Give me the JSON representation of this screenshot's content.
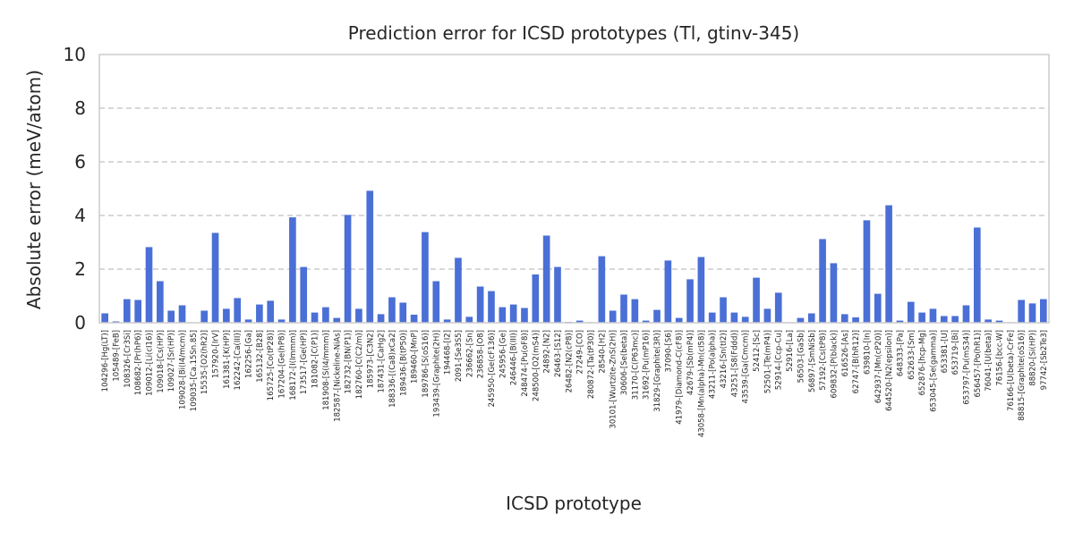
{
  "chart_data": {
    "type": "bar",
    "title": "Prediction error for ICSD prototypes (Tl, gtinv-345)",
    "xlabel": "ICSD prototype",
    "ylabel": "Absolute error (meV/atom)",
    "ylim": [
      0,
      10
    ],
    "yticks": [
      0,
      2,
      4,
      6,
      8,
      10
    ],
    "grid": "y-dashed",
    "colors": {
      "bar": "#4a6fd6",
      "grid": "#cccccc",
      "frame": "#cccccc"
    },
    "categories": [
      "104296-[Hg(LT)]",
      "105489-[FeB]",
      "108326-[Cr3Si]",
      "108682-[Pr(hP6)]",
      "109012-[Li(cI16)]",
      "109018-[Cs(HP)]",
      "109027-[Sr(HP)]",
      "109028-[Bi(I4/mcm)]",
      "109035-[Ca.15Sn.85]",
      "15535-[O2(hR2)]",
      "157920-[IrV]",
      "161381-[K(HP)]",
      "162242-[Ca(III)]",
      "162256-[Ga]",
      "165132-[B28]",
      "165725-[Co(tP28)]",
      "167204-[Ge(hP8)]",
      "168172-[I(Immm)]",
      "173517-[Ge(HP)]",
      "181082-[C(P1)]",
      "181908-[S(I4/mmm)]",
      "182587-[Nickeline-NiAs]",
      "182732-[BN(P1)]",
      "182760-[C(C2/m)]",
      "185973-[C3N2]",
      "187431-[CaHg2]",
      "188336-[(Ca8)xCa2]",
      "189436-[B(tP50)]",
      "189460-[MnP]",
      "189786-[S(oS16)]",
      "193439-[Graphite(2H)]",
      "194468-[I2]",
      "2091-[Se3S5]",
      "236662-[Sn]",
      "236858-[O8]",
      "245950-[Ge(cF136)]",
      "245956-[Ge]",
      "246446-[B(III)]",
      "248474-[Pu(oF8)]",
      "248500-[O2(mS4)]",
      "24892-[N2]",
      "26463-[S12]",
      "26482-[N2(cP8)]",
      "27249-[CO]",
      "280872-[Ta(tP30)]",
      "28540-[H2]",
      "30101-[Wurtzite-ZnS(2H)]",
      "30606-[Se(beta)]",
      "31170-[C(P63mc)]",
      "31692-[Pu(mP16)]",
      "31829-[Graphite(3R)]",
      "37090-[S6]",
      "41979-[Diamond-C(cF8)]",
      "42679-[Sb(mP4)]",
      "43058-[Mn(alpha)-Mn(cI58)]",
      "43211-[Po(alpha)]",
      "43216-[Sn(tI2)]",
      "43251-[S8(Fddd)]",
      "43539-[Ga(Cmcm)]",
      "52412-[Sc]",
      "52501-[Te(mP4)]",
      "52914-[Ccp-Cu]",
      "52916-[La]",
      "56503-[GaSb]",
      "56897-[SmNiSb]",
      "57192-[Cs(tP8)]",
      "609832-[P(black)]",
      "616526-[As]",
      "62747-[B(hR12)]",
      "639810-[In]",
      "642937-[Mn(cP20)]",
      "644520-[N2(epsilon)]",
      "648333-[Pa]",
      "652633-[Sm]",
      "652876-[hcp-Mg]",
      "653045-[Se(gamma)]",
      "653381-[U]",
      "653719-[Bi]",
      "653797-[Pu(mS34)]",
      "656457-[Po(hR1)]",
      "76041-[U(beta)]",
      "76156-[bcc-W]",
      "76166-[U(beta)-CrFe]",
      "88815-[Graphite(oS16)]",
      "88820-[Si(HP)]",
      "97742-[Sb2Te3]"
    ],
    "values": [
      0.35,
      0.05,
      0.88,
      0.85,
      2.82,
      1.55,
      0.45,
      0.65,
      0.0,
      0.45,
      3.35,
      0.52,
      0.92,
      0.12,
      0.68,
      0.82,
      0.12,
      3.93,
      2.08,
      0.38,
      0.58,
      0.18,
      4.02,
      0.52,
      4.92,
      0.32,
      0.95,
      0.75,
      0.3,
      3.38,
      1.55,
      0.12,
      2.42,
      0.22,
      1.35,
      1.18,
      0.58,
      0.68,
      0.55,
      1.8,
      3.25,
      2.08,
      0.03,
      0.08,
      0.02,
      2.48,
      0.45,
      1.05,
      0.88,
      0.08,
      0.48,
      2.32,
      0.18,
      1.62,
      2.45,
      0.38,
      0.95,
      0.38,
      0.22,
      1.68,
      0.52,
      1.12,
      0.02,
      0.18,
      0.35,
      3.12,
      2.22,
      0.32,
      0.2,
      3.82,
      1.08,
      4.38,
      0.08,
      0.78,
      0.38,
      0.52,
      0.25,
      0.25,
      0.65,
      3.55,
      0.12,
      0.08,
      0.02,
      0.85,
      0.72,
      0.88
    ]
  }
}
